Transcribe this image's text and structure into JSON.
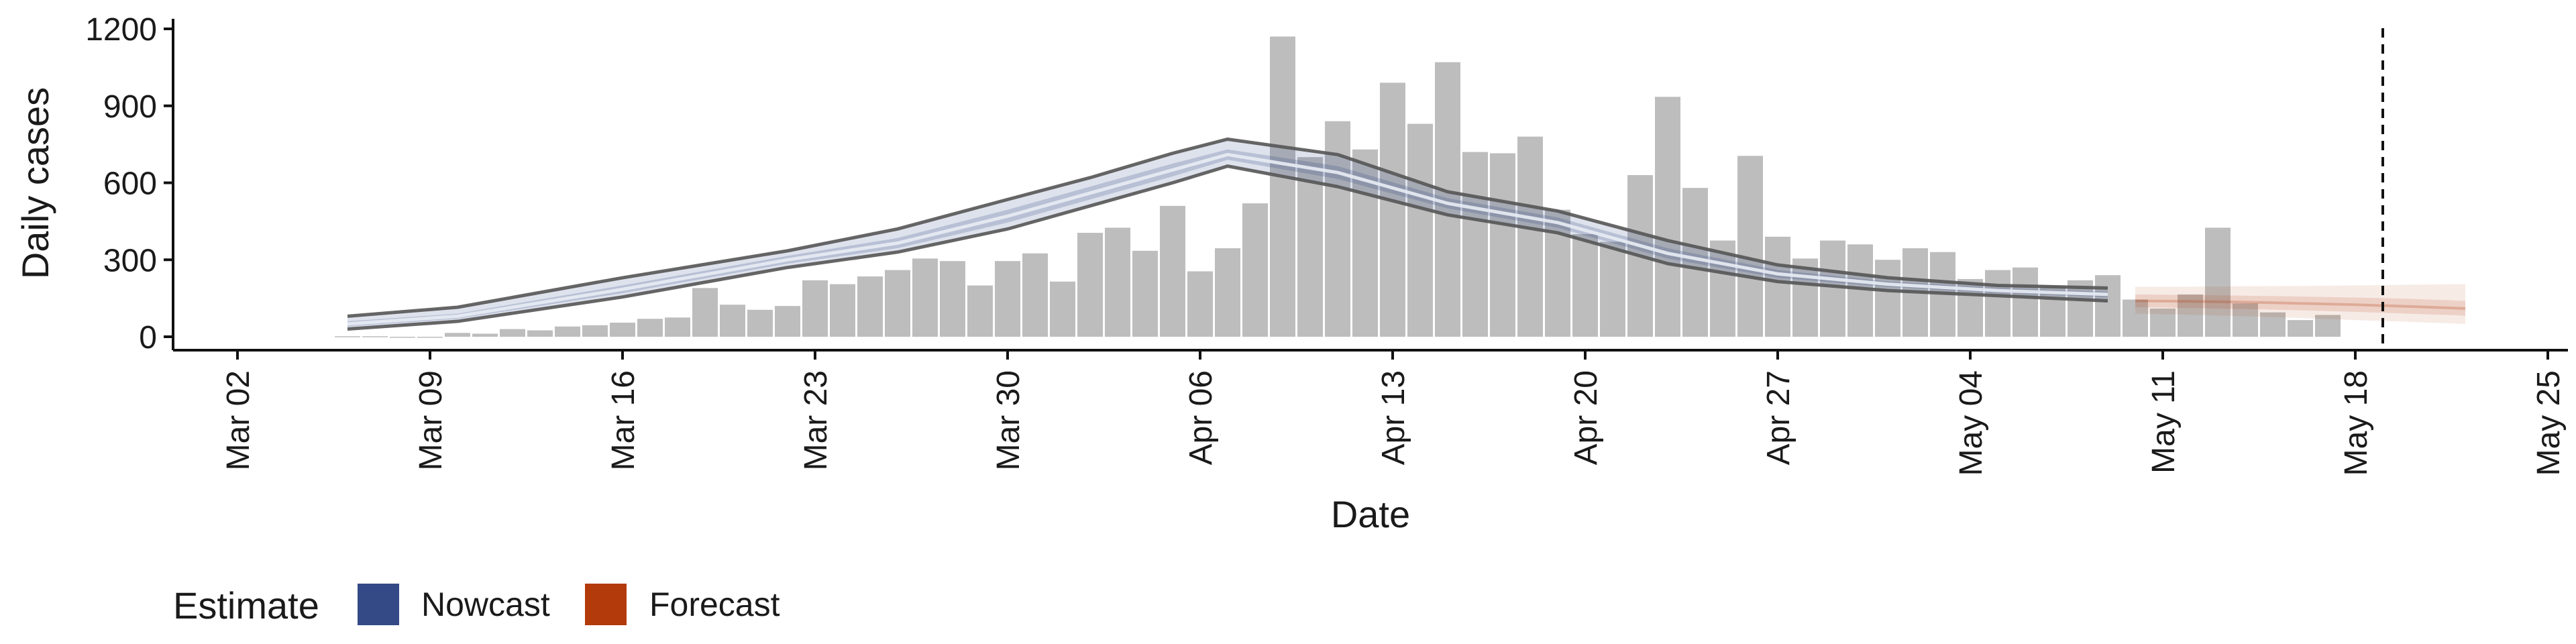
{
  "chart_data": {
    "type": "bar",
    "title": "",
    "xlabel": "Date",
    "ylabel": "Daily cases",
    "ylim": [
      0,
      1200
    ],
    "yticks": [
      0,
      300,
      600,
      900,
      1200
    ],
    "ytick_labels": [
      "0",
      "300",
      "600",
      "900",
      "1200"
    ],
    "xlim_days": [
      -2,
      83
    ],
    "x_origin": "Mar 02",
    "xticks_days": [
      0,
      7,
      14,
      21,
      28,
      35,
      42,
      49,
      56,
      63,
      70,
      77,
      84
    ],
    "xtick_labels": [
      "Mar 02",
      "Mar 09",
      "Mar 16",
      "Mar 23",
      "Mar 30",
      "Apr 06",
      "Apr 13",
      "Apr 20",
      "Apr 27",
      "May 04",
      "May 11",
      "May 18",
      "May 25"
    ],
    "cases": {
      "start_day": 4,
      "values": [
        2,
        2,
        0,
        0,
        15,
        12,
        30,
        25,
        40,
        45,
        55,
        70,
        75,
        190,
        125,
        105,
        120,
        220,
        205,
        235,
        260,
        305,
        295,
        200,
        295,
        325,
        215,
        405,
        425,
        335,
        510,
        255,
        345,
        520,
        1170,
        700,
        840,
        730,
        990,
        830,
        1070,
        720,
        715,
        780,
        495,
        400,
        370,
        630,
        935,
        580,
        375,
        705,
        390,
        305,
        375,
        360,
        300,
        345,
        330,
        225,
        260,
        270,
        200,
        220,
        240,
        145,
        110,
        165,
        425,
        130,
        95,
        65,
        85
      ]
    },
    "nowcast": {
      "start_day": 4,
      "end_day": 68,
      "days": [
        4,
        8,
        14,
        20,
        24,
        28,
        31,
        34,
        36,
        40,
        44,
        48,
        52,
        56,
        60,
        64,
        68
      ],
      "median": [
        50,
        80,
        185,
        300,
        365,
        470,
        560,
        650,
        710,
        640,
        520,
        445,
        325,
        245,
        205,
        180,
        165
      ],
      "band50_low": [
        40,
        70,
        170,
        285,
        345,
        445,
        535,
        625,
        690,
        615,
        500,
        425,
        305,
        230,
        195,
        170,
        155
      ],
      "band50_high": [
        60,
        90,
        200,
        315,
        385,
        495,
        585,
        675,
        730,
        665,
        540,
        465,
        345,
        260,
        215,
        190,
        175
      ],
      "band90_low": [
        30,
        60,
        155,
        270,
        330,
        420,
        510,
        600,
        665,
        585,
        475,
        405,
        285,
        215,
        180,
        160,
        140
      ],
      "band90_high": [
        80,
        115,
        230,
        335,
        420,
        535,
        620,
        715,
        770,
        710,
        565,
        490,
        375,
        280,
        230,
        200,
        190
      ]
    },
    "forecast": {
      "days": [
        69,
        71,
        73,
        75,
        77,
        79,
        81
      ],
      "median": [
        140,
        138,
        135,
        130,
        125,
        118,
        110
      ],
      "band50_low": [
        115,
        112,
        108,
        103,
        97,
        90,
        82
      ],
      "band50_high": [
        165,
        163,
        160,
        157,
        153,
        148,
        140
      ],
      "band90_low": [
        90,
        86,
        80,
        73,
        65,
        58,
        50
      ],
      "band90_high": [
        195,
        195,
        197,
        198,
        200,
        203,
        205
      ]
    },
    "vline_day": 78,
    "legend": {
      "title": "Estimate",
      "position": "bottom-left",
      "items": [
        {
          "label": "Nowcast",
          "color": "#344a86"
        },
        {
          "label": "Forecast",
          "color": "#b33a0b"
        }
      ]
    },
    "colors": {
      "bars": "#bdbdbd",
      "nowcast": "#344a86",
      "forecast": "#b33a0b",
      "outline": "#555555",
      "vline": "#111111"
    }
  }
}
